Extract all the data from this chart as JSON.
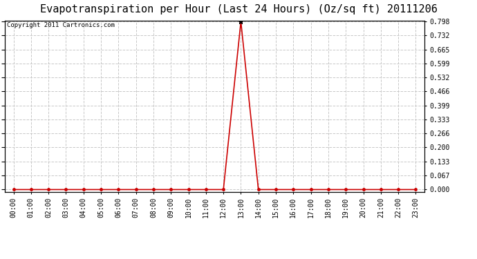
{
  "title": "Evapotranspiration per Hour (Last 24 Hours) (Oz/sq ft) 20111206",
  "copyright_text": "Copyright 2011 Cartronics.com",
  "x_labels": [
    "00:00",
    "01:00",
    "02:00",
    "03:00",
    "04:00",
    "05:00",
    "06:00",
    "07:00",
    "08:00",
    "09:00",
    "10:00",
    "11:00",
    "12:00",
    "13:00",
    "14:00",
    "15:00",
    "16:00",
    "17:00",
    "18:00",
    "19:00",
    "20:00",
    "21:00",
    "22:00",
    "23:00"
  ],
  "y_values": [
    0.0,
    0.0,
    0.0,
    0.0,
    0.0,
    0.0,
    0.0,
    0.0,
    0.0,
    0.0,
    0.0,
    0.0,
    0.0,
    0.798,
    0.0,
    0.0,
    0.0,
    0.0,
    0.0,
    0.0,
    0.0,
    0.0,
    0.0,
    0.0
  ],
  "y_ticks": [
    0.0,
    0.067,
    0.133,
    0.2,
    0.266,
    0.333,
    0.399,
    0.466,
    0.532,
    0.599,
    0.665,
    0.732,
    0.798
  ],
  "y_max": 0.798,
  "peak_idx": 13,
  "line_color": "#cc0000",
  "marker_color": "#000000",
  "background_color": "#ffffff",
  "plot_bg_color": "#ffffff",
  "grid_color": "#c8c8c8",
  "title_fontsize": 11,
  "copyright_fontsize": 6.5,
  "tick_fontsize": 7,
  "ytick_fontsize": 7
}
